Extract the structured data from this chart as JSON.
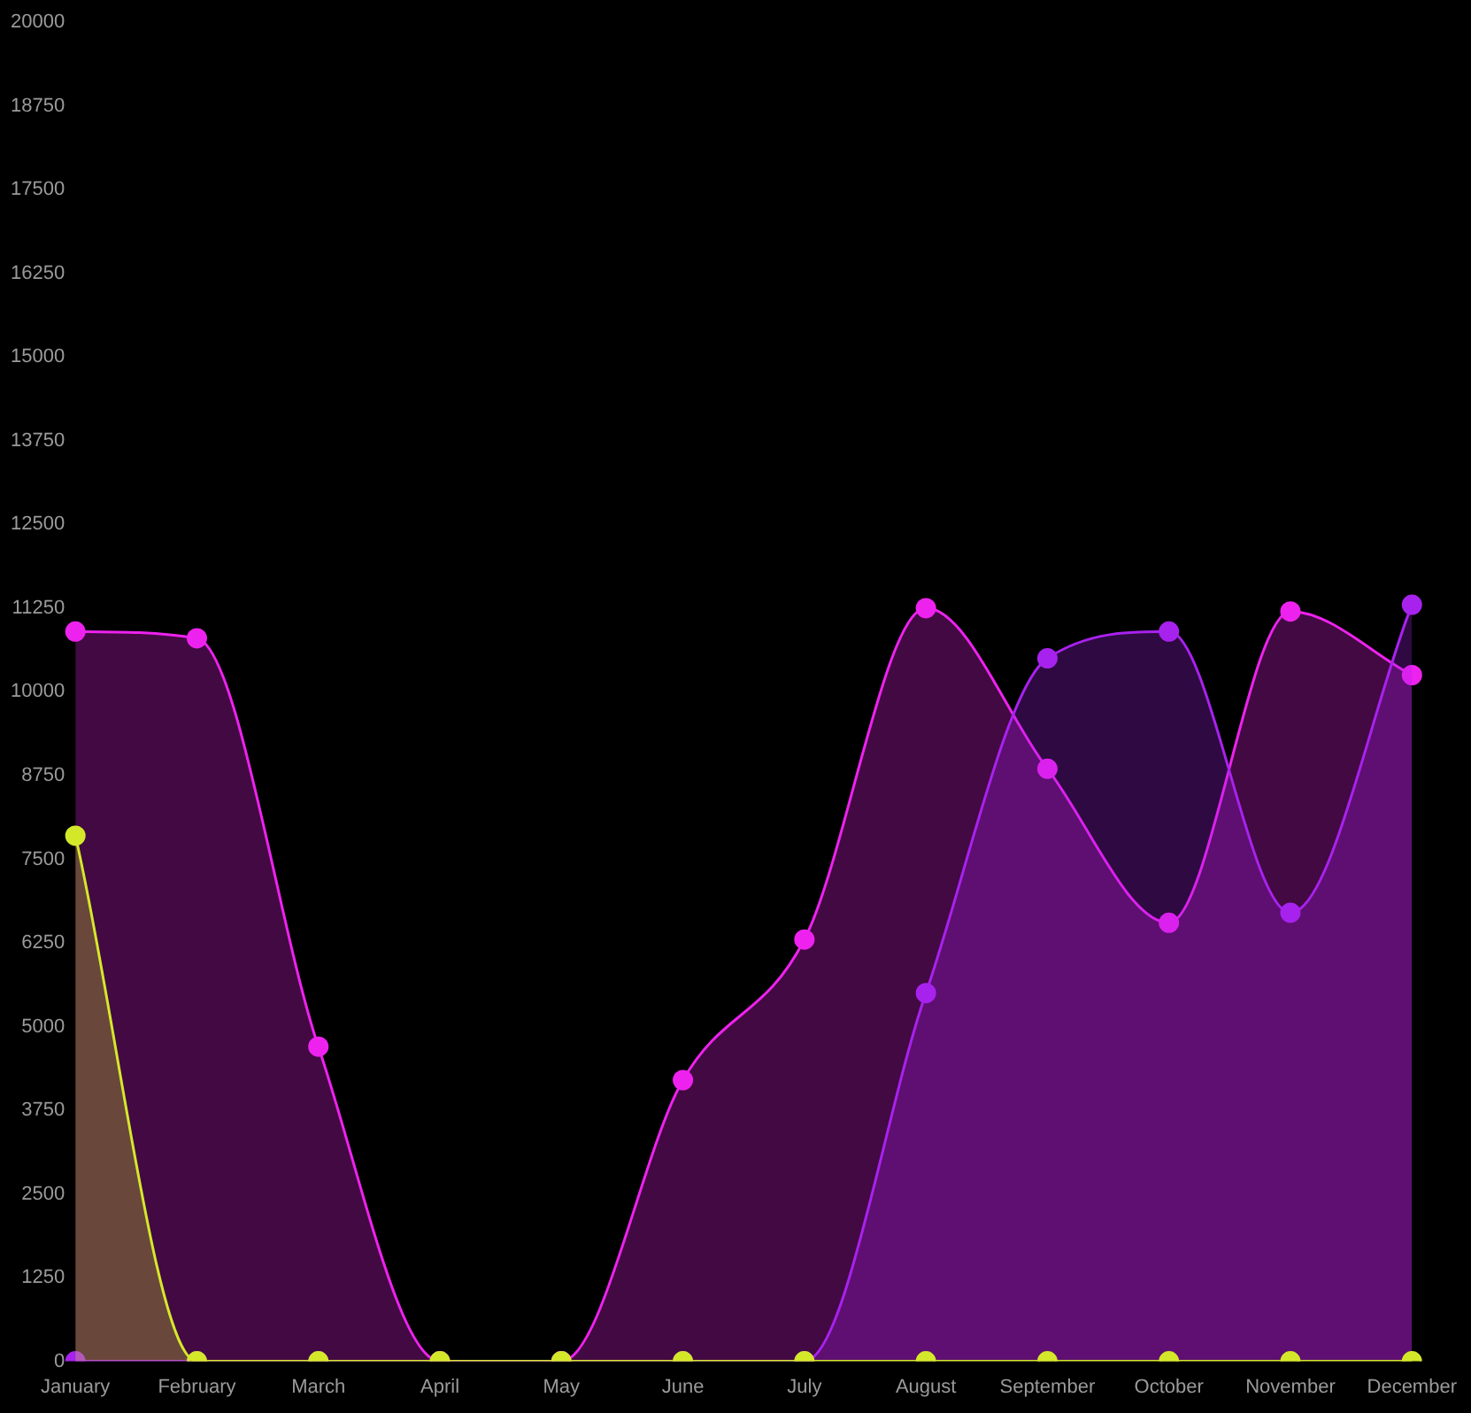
{
  "chart_data": {
    "type": "area",
    "categories": [
      "January",
      "February",
      "March",
      "April",
      "May",
      "June",
      "July",
      "August",
      "September",
      "October",
      "November",
      "December"
    ],
    "series": [
      {
        "color": "#ee22ee",
        "values": [
          10900,
          10800,
          4700,
          0,
          0,
          4200,
          6300,
          11250,
          8850,
          6550,
          11200,
          10250
        ]
      },
      {
        "color": "#a822ee",
        "values": [
          0,
          0,
          0,
          0,
          0,
          0,
          0,
          5500,
          10500,
          10900,
          6700,
          11300
        ]
      },
      {
        "color": "#d4e82a",
        "values": [
          7850,
          0,
          0,
          0,
          0,
          0,
          0,
          0,
          0,
          0,
          0,
          0
        ]
      }
    ],
    "ylim": [
      0,
      20000
    ],
    "yticks": [
      0,
      1250,
      2500,
      3750,
      5000,
      6250,
      7500,
      8750,
      10000,
      11250,
      12500,
      13750,
      15000,
      16250,
      17500,
      18750,
      20000
    ],
    "grid": false,
    "legend": false,
    "marker": "circle"
  }
}
